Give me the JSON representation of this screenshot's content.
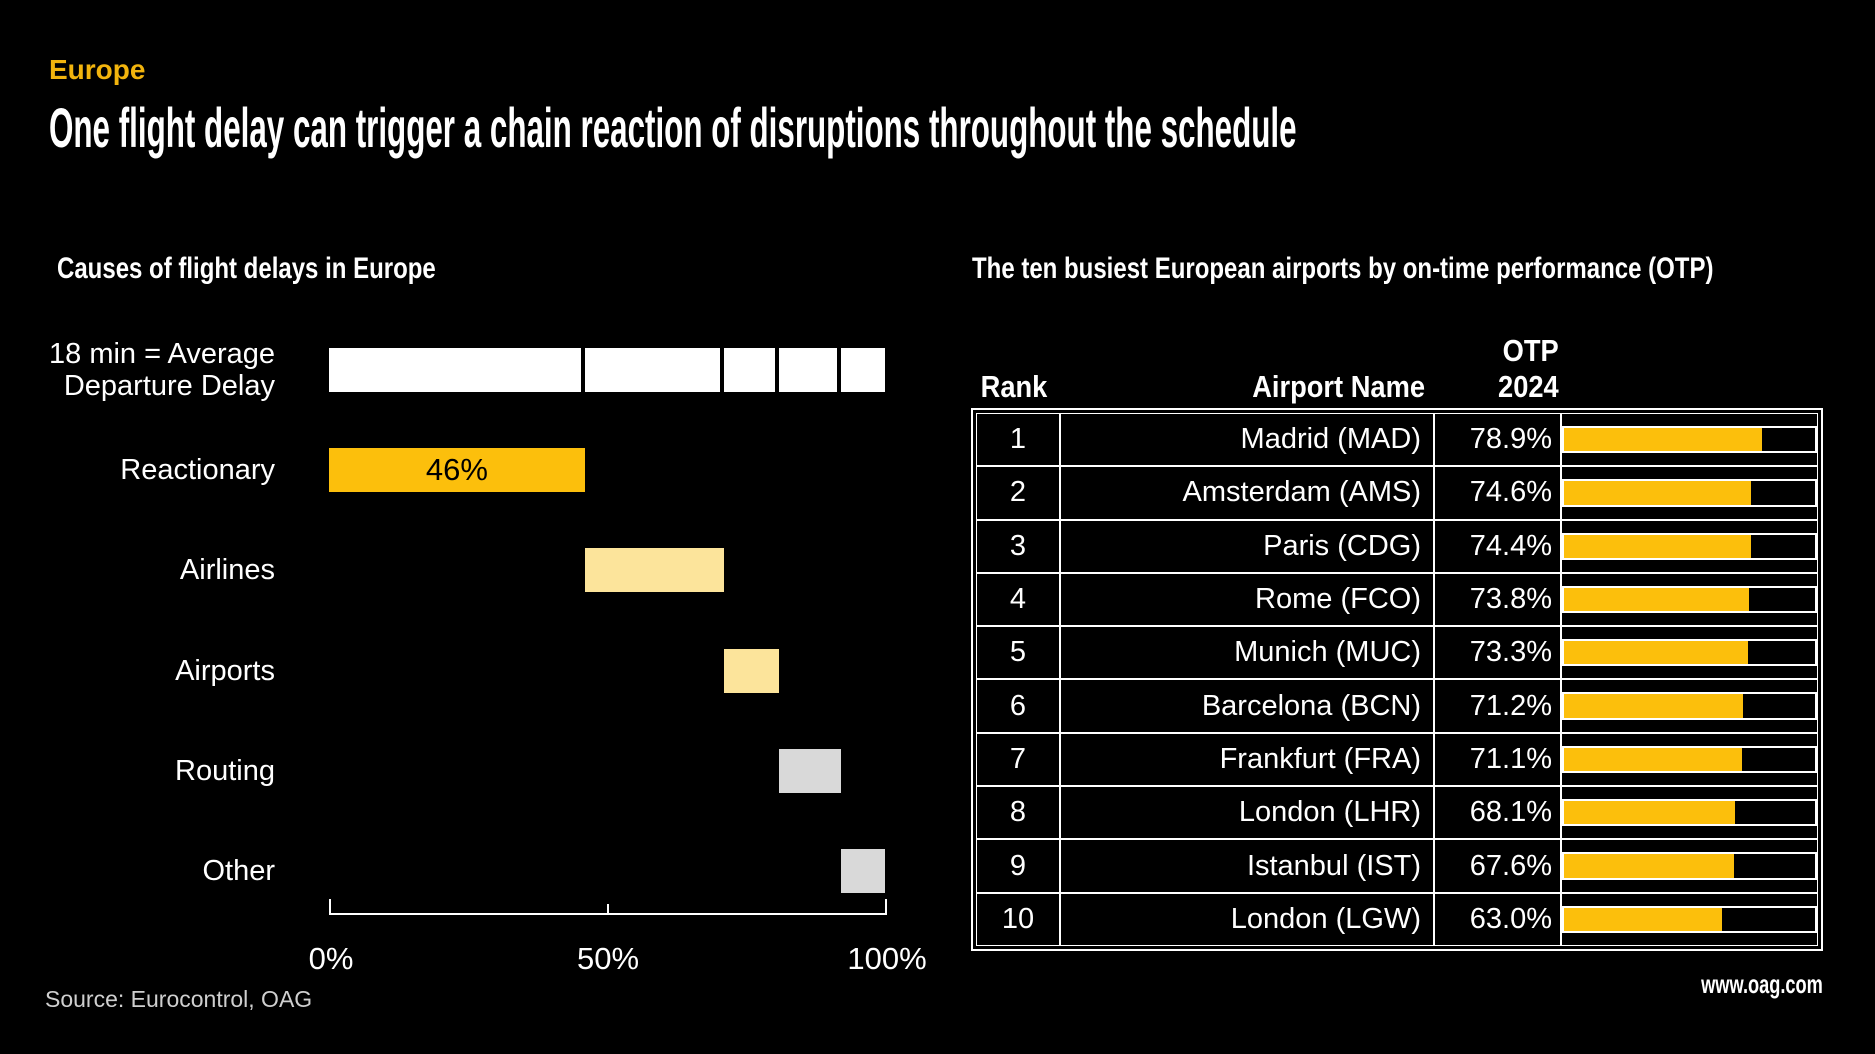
{
  "header": {
    "kicker": "Europe",
    "title": "One flight delay can trigger a chain reaction of disruptions throughout the schedule"
  },
  "footer": {
    "source": "Source: Eurocontrol, OAG",
    "website": "www.oag.com"
  },
  "colors": {
    "background": "#000000",
    "accent_yellow": "#FCBF0C",
    "pale_yellow": "#FCE49B",
    "gray": "#D9D9D9",
    "white": "#FFFFFF",
    "kicker_yellow": "#F2B40D"
  },
  "chart_data": [
    {
      "type": "bar",
      "subtype": "waterfall",
      "title": "Causes of flight delays in Europe",
      "total_label_lines": [
        "18 min = Average",
        "Departure Delay"
      ],
      "categories": [
        "18 min = Average Departure Delay",
        "Reactionary",
        "Airlines",
        "Airports",
        "Routing",
        "Other"
      ],
      "values": [
        100,
        46,
        25,
        10,
        11,
        8
      ],
      "starts": [
        0,
        0,
        46,
        71,
        81,
        92
      ],
      "value_labels": [
        "",
        "46%",
        "",
        "",
        "",
        ""
      ],
      "bar_colors": [
        "#FFFFFF",
        "#FCBF0C",
        "#FCE49B",
        "#FCE49B",
        "#D9D9D9",
        "#D9D9D9"
      ],
      "xlim": [
        0,
        100
      ],
      "xtick_labels": [
        "0%",
        "50%",
        "100%"
      ],
      "xtick_values": [
        0,
        50,
        100
      ],
      "grid": false,
      "legend": false
    },
    {
      "type": "table",
      "title": "The ten busiest European airports by on-time performance (OTP)",
      "columns": [
        "Rank",
        "Airport Name",
        "OTP 2024"
      ],
      "otp_header_lines": [
        "OTP",
        "2024"
      ],
      "rows": [
        {
          "rank": "1",
          "airport": "Madrid (MAD)",
          "otp": "78.9%",
          "value": 78.9
        },
        {
          "rank": "2",
          "airport": "Amsterdam (AMS)",
          "otp": "74.6%",
          "value": 74.6
        },
        {
          "rank": "3",
          "airport": "Paris (CDG)",
          "otp": "74.4%",
          "value": 74.4
        },
        {
          "rank": "4",
          "airport": "Rome (FCO)",
          "otp": "73.8%",
          "value": 73.8
        },
        {
          "rank": "5",
          "airport": "Munich (MUC)",
          "otp": "73.3%",
          "value": 73.3
        },
        {
          "rank": "6",
          "airport": "Barcelona (BCN)",
          "otp": "71.2%",
          "value": 71.2
        },
        {
          "rank": "7",
          "airport": "Frankfurt (FRA)",
          "otp": "71.1%",
          "value": 71.1
        },
        {
          "rank": "8",
          "airport": "London (LHR)",
          "otp": "68.1%",
          "value": 68.1
        },
        {
          "rank": "9",
          "airport": "Istanbul (IST)",
          "otp": "67.6%",
          "value": 67.6
        },
        {
          "rank": "10",
          "airport": "London (LGW)",
          "otp": "63.0%",
          "value": 63.0
        }
      ],
      "bar_scale": [
        0,
        100
      ],
      "bar_color": "#FCBF0C"
    }
  ]
}
